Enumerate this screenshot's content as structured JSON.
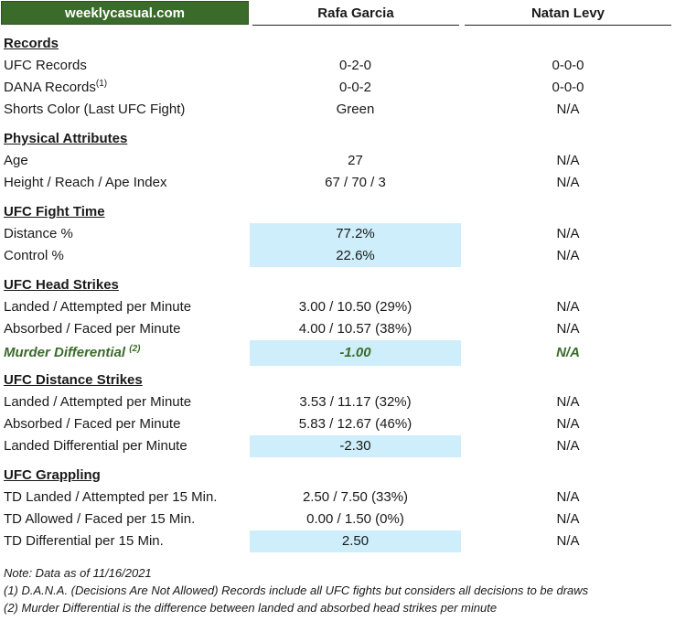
{
  "header": {
    "brand": "weeklycasual.com",
    "fighter_a": "Rafa Garcia",
    "fighter_b": "Natan Levy"
  },
  "records": {
    "title": "Records",
    "ufc_label": "UFC Records",
    "ufc_a": "0-2-0",
    "ufc_b": "0-0-0",
    "dana_label": "DANA Records",
    "dana_sup": "(1)",
    "dana_a": "0-0-2",
    "dana_b": "0-0-0",
    "shorts_label": "Shorts Color (Last UFC Fight)",
    "shorts_a": "Green",
    "shorts_b": "N/A"
  },
  "physical": {
    "title": "Physical Attributes",
    "age_label": "Age",
    "age_a": "27",
    "age_b": "N/A",
    "hra_label": "Height / Reach / Ape Index",
    "hra_a": "67 / 70 / 3",
    "hra_b": "N/A"
  },
  "fight_time": {
    "title": "UFC Fight Time",
    "distance_label": "Distance %",
    "distance_a": "77.2%",
    "distance_b": "N/A",
    "control_label": "Control %",
    "control_a": "22.6%",
    "control_b": "N/A"
  },
  "head_strikes": {
    "title": "UFC Head Strikes",
    "landed_label": "Landed / Attempted per Minute",
    "landed_a": "3.00 / 10.50 (29%)",
    "landed_b": "N/A",
    "absorbed_label": "Absorbed / Faced per Minute",
    "absorbed_a": "4.00 / 10.57 (38%)",
    "absorbed_b": "N/A",
    "murder_label": "Murder Differential",
    "murder_sup": "(2)",
    "murder_a": "-1.00",
    "murder_b": "N/A"
  },
  "distance_strikes": {
    "title": "UFC Distance Strikes",
    "landed_label": "Landed / Attempted per Minute",
    "landed_a": "3.53 / 11.17 (32%)",
    "landed_b": "N/A",
    "absorbed_label": "Absorbed / Faced per Minute",
    "absorbed_a": "5.83 / 12.67 (46%)",
    "absorbed_b": "N/A",
    "diff_label": "Landed Differential per Minute",
    "diff_a": "-2.30",
    "diff_b": "N/A"
  },
  "grappling": {
    "title": "UFC Grappling",
    "td_landed_label": "TD Landed / Attempted per 15 Min.",
    "td_landed_a": "2.50 / 7.50 (33%)",
    "td_landed_b": "N/A",
    "td_allowed_label": "TD Allowed / Faced per 15 Min.",
    "td_allowed_a": "0.00 / 1.50 (0%)",
    "td_allowed_b": "N/A",
    "td_diff_label": "TD Differential per 15 Min.",
    "td_diff_a": "2.50",
    "td_diff_b": "N/A"
  },
  "notes": {
    "date": "Note: Data as of 11/16/2021",
    "n1": "(1) D.A.N.A. (Decisions Are Not Allowed) Records include all UFC fights but considers all decisions to be draws",
    "n2": "(2) Murder Differential is the difference between landed and absorbed head strikes per minute"
  },
  "colors": {
    "brand_green": "#3a6b2a",
    "highlight_blue": "#cdeefa"
  }
}
